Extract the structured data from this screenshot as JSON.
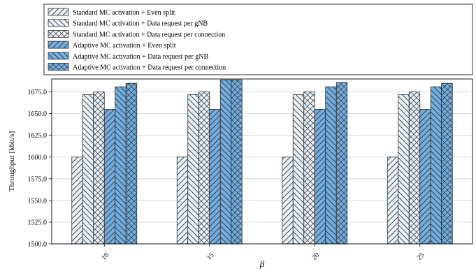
{
  "chart_data": {
    "type": "bar",
    "title": "",
    "xlabel": "β",
    "ylabel": "Throughput [kbit/s]",
    "categories": [
      "10",
      "15",
      "20",
      "25"
    ],
    "ylim": [
      1500,
      1690
    ],
    "yticks": [
      1500.0,
      1525.0,
      1550.0,
      1575.0,
      1600.0,
      1625.0,
      1650.0,
      1675.0
    ],
    "grid": true,
    "legend_position": "top",
    "series": [
      {
        "name": "Standard MC activation + Even split",
        "values": [
          1600,
          1600,
          1600,
          1600
        ],
        "color": "#e8f0f8",
        "hatch": "forward"
      },
      {
        "name": "Standard MC activation + Data request per gNB",
        "values": [
          1672,
          1672,
          1672,
          1672
        ],
        "color": "#e8f0f8",
        "hatch": "back"
      },
      {
        "name": "Standard MC activation + Data request per connection",
        "values": [
          1675,
          1675,
          1675,
          1675
        ],
        "color": "#e8f0f8",
        "hatch": "cross"
      },
      {
        "name": "Adaptive MC activation + Even split",
        "values": [
          1655,
          1655,
          1655,
          1655
        ],
        "color": "#72aee0",
        "hatch": "forward"
      },
      {
        "name": "Adaptive MC activation + Data request per gNB",
        "values": [
          1681,
          1689,
          1681,
          1681
        ],
        "color": "#72aee0",
        "hatch": "back"
      },
      {
        "name": "Adaptive MC activation + Data request per connection",
        "values": [
          1685,
          1689,
          1686,
          1685
        ],
        "color": "#72aee0",
        "hatch": "cross"
      }
    ]
  }
}
